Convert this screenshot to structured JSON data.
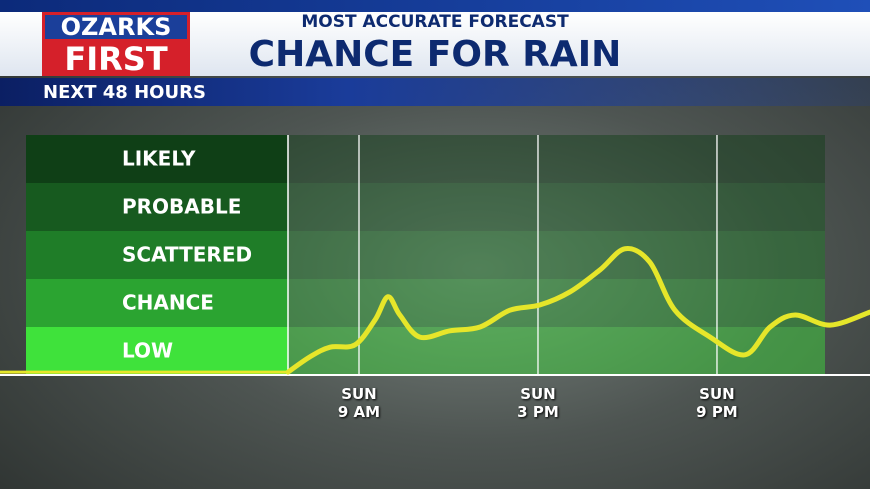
{
  "header": {
    "logo": [
      "OZARKS",
      "FIRST"
    ],
    "kicker": "MOST ACCURATE FORECAST",
    "period": "NEXT 48 HOURS"
  },
  "chart_data": {
    "type": "line",
    "title": "CHANCE FOR RAIN",
    "x": [
      6.62,
      7.36,
      8.03,
      8.87,
      9.54,
      9.97,
      10.37,
      11.04,
      12.05,
      13.06,
      14.06,
      15.07,
      16.07,
      17.08,
      17.92,
      18.75,
      19.59,
      20.77,
      21.94,
      22.78,
      23.62,
      24.79,
      26.13
    ],
    "series": [
      {
        "color": "#e6e62a",
        "values": [
          0.06,
          0.38,
          0.58,
          0.63,
          1.15,
          1.63,
          1.25,
          0.79,
          0.92,
          1.0,
          1.35,
          1.46,
          1.73,
          2.19,
          2.63,
          2.35,
          1.35,
          0.79,
          0.42,
          1.0,
          1.25,
          1.04,
          1.31
        ]
      }
    ],
    "xlim": [
      6.62,
      26.13
    ],
    "xticks": [
      {
        "value": 9,
        "label": "SUN\n9 AM"
      },
      {
        "value": 15,
        "label": "SUN\n3 PM"
      },
      {
        "value": 21,
        "label": "SUN\n9 PM"
      }
    ],
    "ylim": [
      0,
      5
    ],
    "yticks": [
      {
        "value": 0.5,
        "label": "LOW"
      },
      {
        "value": 1.5,
        "label": "CHANCE"
      },
      {
        "value": 2.5,
        "label": "SCATTERED"
      },
      {
        "value": 3.5,
        "label": "PROBABLE"
      },
      {
        "value": 4.5,
        "label": "LIKELY"
      }
    ],
    "band_colors": [
      "#3fe23b",
      "#2ba431",
      "#1f7d28",
      "#175a1f",
      "#0f3f16"
    ]
  }
}
